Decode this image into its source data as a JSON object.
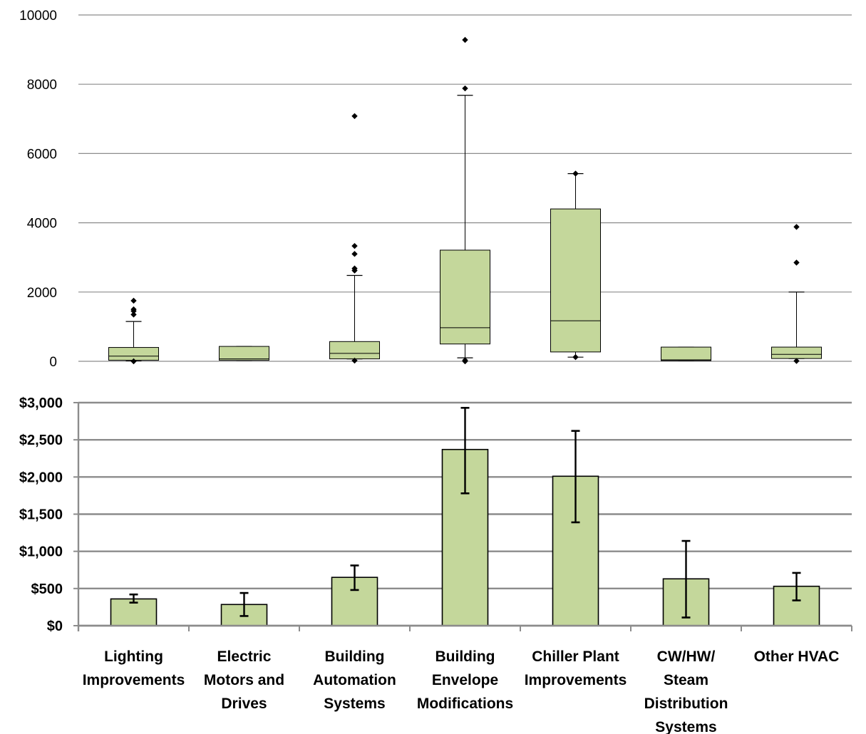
{
  "chart_data": [
    {
      "type": "box",
      "ylim": [
        0,
        10000
      ],
      "yticks": [
        "0",
        "2000",
        "4000",
        "6000",
        "8000",
        "10000"
      ],
      "grid": true,
      "colors": {
        "box_fill": "#c4d79b",
        "box_stroke": "#000000",
        "grid": "#8c8c8c",
        "outlier": "#000000"
      },
      "categories": [
        "Lighting Improvements",
        "Electric Motors and Drives",
        "Building Automation Systems",
        "Building Envelope Modifications",
        "Chiller Plant Improvements",
        "CW/HW/ Steam Distribution Systems",
        "Other HVAC"
      ],
      "boxes": [
        {
          "category": "Lighting Improvements",
          "low": 20,
          "q1": 30,
          "median": 150,
          "q3": 400,
          "high": 1150,
          "outliers": [
            0,
            1350,
            1450,
            1500,
            1750
          ]
        },
        {
          "category": "Electric Motors and Drives",
          "low": 30,
          "q1": 30,
          "median": 70,
          "q3": 430,
          "high": 430,
          "outliers": []
        },
        {
          "category": "Building Automation Systems",
          "low": 70,
          "q1": 70,
          "median": 230,
          "q3": 570,
          "high": 2480,
          "outliers": [
            20,
            2620,
            2680,
            3100,
            3330,
            7080
          ]
        },
        {
          "category": "Building Envelope Modifications",
          "low": 100,
          "q1": 500,
          "median": 970,
          "q3": 3210,
          "high": 7680,
          "outliers": [
            0,
            30,
            7880,
            9280
          ]
        },
        {
          "category": "Chiller Plant Improvements",
          "low": 120,
          "q1": 270,
          "median": 1170,
          "q3": 4400,
          "high": 5420,
          "outliers": [
            120,
            5420
          ]
        },
        {
          "category": "CW/HW/ Steam Distribution Systems",
          "low": 20,
          "q1": 20,
          "median": 40,
          "q3": 410,
          "high": 410,
          "outliers": []
        },
        {
          "category": "Other HVAC",
          "low": 80,
          "q1": 80,
          "median": 200,
          "q3": 410,
          "high": 2000,
          "outliers": [
            10,
            2850,
            3880
          ]
        }
      ]
    },
    {
      "type": "bar",
      "ylim": [
        0,
        3000
      ],
      "yticks": [
        "$0",
        "$500",
        "$1,000",
        "$1,500",
        "$2,000",
        "$2,500",
        "$3,000"
      ],
      "grid": true,
      "colors": {
        "bar_fill": "#c4d79b",
        "bar_stroke": "#000000",
        "grid": "#8c8c8c",
        "error_bar": "#000000"
      },
      "categories": [
        "Lighting Improvements",
        "Electric Motors and Drives",
        "Building Automation Systems",
        "Building Envelope Modifications",
        "Chiller Plant Improvements",
        "CW/HW/ Steam Distribution Systems",
        "Other HVAC"
      ],
      "category_label_lines": [
        [
          "Lighting",
          "Improvements"
        ],
        [
          "Electric",
          "Motors and",
          "Drives"
        ],
        [
          "Building",
          "Automation",
          "Systems"
        ],
        [
          "Building",
          "Envelope",
          "Modifications"
        ],
        [
          "Chiller Plant",
          "Improvements"
        ],
        [
          "CW/HW/",
          "Steam",
          "Distribution",
          "Systems"
        ],
        [
          "Other HVAC"
        ]
      ],
      "values": [
        360,
        285,
        650,
        2370,
        2010,
        630,
        530
      ],
      "error_low": [
        310,
        130,
        480,
        1780,
        1390,
        110,
        340
      ],
      "error_high": [
        420,
        440,
        810,
        2930,
        2620,
        1140,
        710
      ]
    }
  ]
}
